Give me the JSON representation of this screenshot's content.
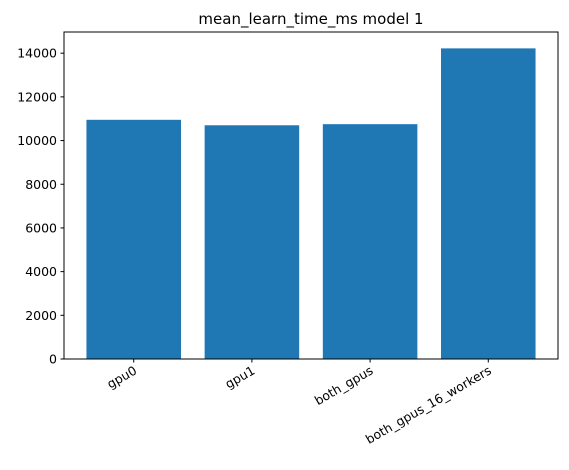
{
  "chart_data": {
    "type": "bar",
    "title": "mean_learn_time_ms model 1",
    "xlabel": "",
    "ylabel": "",
    "categories": [
      "gpu0",
      "gpu1",
      "both_gpus",
      "both_gpus_16_workers"
    ],
    "values": [
      10950,
      10700,
      10750,
      14220
    ],
    "ylim": [
      0,
      14970
    ],
    "yticks": [
      0,
      2000,
      4000,
      6000,
      8000,
      10000,
      12000,
      14000
    ],
    "grid": false,
    "legend": "none",
    "bar_color": "#1f77b4"
  }
}
